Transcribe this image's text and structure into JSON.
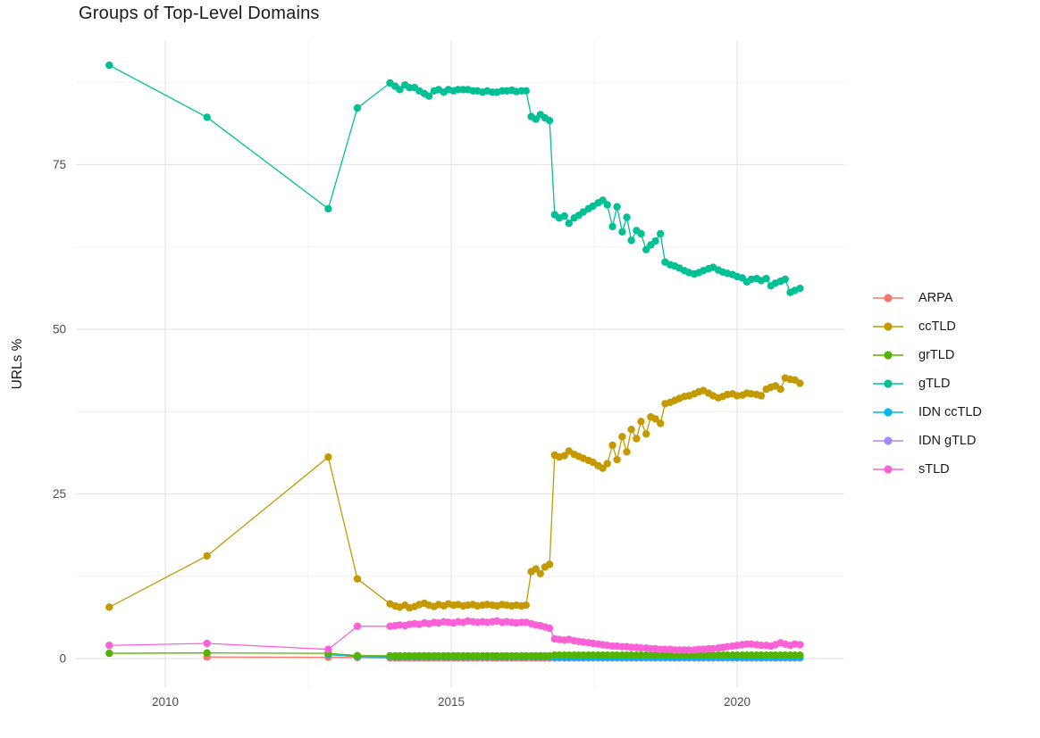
{
  "chart_data": {
    "type": "line",
    "title": "Groups of Top-Level Domains",
    "xlabel": "",
    "ylabel": "URLs %",
    "grid": true,
    "legend_position": "right",
    "x_ticks": [
      2010,
      2015,
      2020
    ],
    "x_minor_gridlines": [
      2012.5,
      2017.5
    ],
    "y_ticks": [
      0,
      25,
      50,
      75
    ],
    "y_minor_gridlines": [
      12.5,
      37.5,
      62.5,
      87.5
    ],
    "x_range": [
      2008.4,
      2021.9
    ],
    "y_range": [
      -4.5,
      94
    ],
    "x_points": {
      "monthly_2014_2016": [
        2013.93,
        2014.02,
        2014.1,
        2014.19,
        2014.27,
        2014.36,
        2014.44,
        2014.53,
        2014.61,
        2014.7,
        2014.78,
        2014.87,
        2014.95,
        2015.04,
        2015.12,
        2015.21,
        2015.29,
        2015.38,
        2015.46,
        2015.55,
        2015.63,
        2015.72,
        2015.8,
        2015.89,
        2015.97,
        2016.06,
        2016.14,
        2016.23,
        2016.31
      ],
      "mid_2016": [
        2016.4,
        2016.48,
        2016.56,
        2016.64,
        2016.72
      ],
      "dense_2017_2021": [
        2016.81,
        2016.89,
        2016.98,
        2017.06,
        2017.15,
        2017.23,
        2017.31,
        2017.4,
        2017.48,
        2017.57,
        2017.65,
        2017.73,
        2017.82,
        2017.9,
        2017.99,
        2018.07,
        2018.15,
        2018.24,
        2018.32,
        2018.41,
        2018.49,
        2018.57,
        2018.66,
        2018.74,
        2018.83,
        2018.91,
        2018.99,
        2019.08,
        2019.16,
        2019.25,
        2019.33,
        2019.41,
        2019.5,
        2019.58,
        2019.67,
        2019.75,
        2019.83,
        2019.92,
        2020.0,
        2020.09,
        2020.17,
        2020.25,
        2020.34,
        2020.42,
        2020.51,
        2020.59,
        2020.67,
        2020.76,
        2020.84,
        2020.93,
        2021.01,
        2021.1
      ]
    },
    "series": [
      {
        "name": "ARPA",
        "color": "#F8766D",
        "x_parts": [
          [
            2010.73,
            2012.85,
            2013.36
          ],
          "monthly_2014_2016",
          "mid_2016",
          "dense_2017_2021"
        ],
        "y_parts": [
          [
            0.25,
            0.2,
            0.15
          ],
          {
            "v": 0.1,
            "n": 29
          },
          {
            "v": 0.1,
            "n": 5
          },
          {
            "v": 0.1,
            "n": 52
          }
        ]
      },
      {
        "name": "ccTLD",
        "color": "#C49A00",
        "x_parts": [
          [
            2009.02,
            2010.73,
            2012.85,
            2013.36
          ],
          "monthly_2014_2016",
          "mid_2016",
          "dense_2017_2021"
        ],
        "y_parts": [
          [
            7.8,
            15.6,
            30.6,
            12.1
          ],
          [
            8.3,
            8.0,
            7.8,
            8.1,
            7.7,
            7.9,
            8.2,
            8.4,
            8.1,
            7.9,
            8.2,
            8.0,
            8.3,
            8.1,
            8.2,
            8.0,
            8.1,
            8.2,
            8.0,
            8.1,
            8.2,
            8.1,
            8.0,
            8.2,
            8.1,
            8.0,
            8.1,
            8.0,
            8.1
          ],
          [
            13.2,
            13.6,
            12.9,
            13.9,
            14.3
          ],
          [
            30.9,
            30.6,
            30.8,
            31.5,
            31.0,
            30.7,
            30.4,
            30.1,
            29.8,
            29.3,
            28.9,
            29.6,
            32.4,
            30.2,
            33.7,
            31.4,
            34.8,
            33.4,
            36.0,
            34.1,
            36.7,
            36.4,
            35.7,
            38.7,
            38.9,
            39.2,
            39.5,
            39.8,
            39.9,
            40.2,
            40.5,
            40.7,
            40.3,
            39.9,
            39.6,
            39.8,
            40.1,
            40.2,
            39.9,
            40.0,
            40.3,
            40.2,
            40.1,
            39.9,
            40.9,
            41.2,
            41.4,
            40.9,
            42.6,
            42.4,
            42.3,
            41.8
          ]
        ]
      },
      {
        "name": "grTLD",
        "color": "#53B400",
        "x_parts": [
          [
            2009.02,
            2010.73,
            2012.85,
            2013.36
          ],
          "monthly_2014_2016",
          "mid_2016",
          "dense_2017_2021"
        ],
        "y_parts": [
          [
            0.8,
            0.85,
            0.8,
            0.45
          ],
          {
            "v": 0.42,
            "n": 29
          },
          {
            "v": 0.42,
            "n": 5
          },
          {
            "v": 0.52,
            "n": 52
          }
        ]
      },
      {
        "name": "gTLD",
        "color": "#00C094",
        "x_parts": [
          [
            2009.02,
            2010.73,
            2012.85,
            2013.36
          ],
          "monthly_2014_2016",
          "mid_2016",
          "dense_2017_2021"
        ],
        "y_parts": [
          [
            90.1,
            82.2,
            68.3,
            83.6
          ],
          [
            87.4,
            86.9,
            86.4,
            87.1,
            86.7,
            86.7,
            86.2,
            85.8,
            85.4,
            86.2,
            86.4,
            86.0,
            86.4,
            86.2,
            86.4,
            86.4,
            86.4,
            86.2,
            86.2,
            86.0,
            86.2,
            86.0,
            86.0,
            86.2,
            86.2,
            86.3,
            86.1,
            86.2,
            86.2
          ],
          [
            82.3,
            81.9,
            82.6,
            82.1,
            81.7
          ],
          [
            67.4,
            66.9,
            67.2,
            66.1,
            66.9,
            67.3,
            67.8,
            68.3,
            68.7,
            69.2,
            69.6,
            68.9,
            65.6,
            68.6,
            64.8,
            67.0,
            63.5,
            65.0,
            64.5,
            62.1,
            62.8,
            63.4,
            64.5,
            60.2,
            59.8,
            59.6,
            59.3,
            58.9,
            58.6,
            58.4,
            58.6,
            58.9,
            59.2,
            59.4,
            59.0,
            58.7,
            58.5,
            58.3,
            58.0,
            57.8,
            57.2,
            57.6,
            57.7,
            57.4,
            57.7,
            56.6,
            57.0,
            57.3,
            57.6,
            55.6,
            55.9,
            56.2
          ]
        ]
      },
      {
        "name": "IDN ccTLD",
        "color": "#00B6EB",
        "x_parts": [
          [
            2012.85,
            2013.36
          ],
          "monthly_2014_2016",
          "mid_2016",
          "dense_2017_2021"
        ],
        "y_parts": [
          [
            0.6,
            0.3
          ],
          {
            "v": 0.25,
            "n": 29
          },
          {
            "v": 0.25,
            "n": 5
          },
          {
            "v": 0.2,
            "n": 52
          }
        ]
      },
      {
        "name": "IDN gTLD",
        "color": "#A58AFF",
        "x_parts": [
          "dense_2017_2021"
        ],
        "y_parts": [
          {
            "v": 0.12,
            "n": 52
          }
        ]
      },
      {
        "name": "sTLD",
        "color": "#FB61D7",
        "x_parts": [
          [
            2009.02,
            2010.73,
            2012.85,
            2013.36
          ],
          "monthly_2014_2016",
          "mid_2016",
          "dense_2017_2021"
        ],
        "y_parts": [
          [
            2.0,
            2.3,
            1.4,
            4.9
          ],
          [
            4.9,
            5.0,
            5.1,
            5.0,
            5.2,
            5.3,
            5.2,
            5.4,
            5.3,
            5.5,
            5.4,
            5.6,
            5.5,
            5.4,
            5.6,
            5.5,
            5.7,
            5.6,
            5.5,
            5.6,
            5.5,
            5.6,
            5.7,
            5.5,
            5.6,
            5.5,
            5.4,
            5.5,
            5.5
          ],
          [
            5.3,
            5.1,
            5.0,
            4.8,
            4.6
          ],
          [
            3.0,
            2.9,
            2.8,
            2.9,
            2.7,
            2.6,
            2.5,
            2.4,
            2.3,
            2.2,
            2.1,
            2.0,
            1.9,
            1.9,
            1.8,
            1.8,
            1.7,
            1.7,
            1.6,
            1.6,
            1.5,
            1.5,
            1.4,
            1.4,
            1.4,
            1.3,
            1.3,
            1.3,
            1.3,
            1.3,
            1.4,
            1.4,
            1.5,
            1.5,
            1.6,
            1.7,
            1.8,
            1.9,
            2.0,
            2.1,
            2.2,
            2.2,
            2.1,
            2.0,
            2.0,
            1.9,
            2.1,
            2.4,
            2.2,
            2.0,
            2.2,
            2.1
          ]
        ]
      }
    ]
  }
}
